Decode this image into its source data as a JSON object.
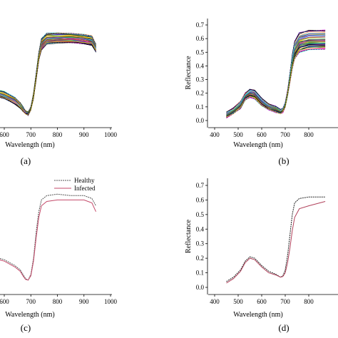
{
  "chart_data": [
    {
      "panel_label": "(a)",
      "type": "line",
      "xlabel": "Wavelength (nm)",
      "ylabel": "",
      "xlim": [
        560,
        1000
      ],
      "xticks": [
        "600",
        "700",
        "800",
        "900",
        "1000"
      ],
      "ylim": [
        0,
        0.72
      ],
      "yticks": [],
      "series_count": 60,
      "x": [
        560,
        600,
        640,
        660,
        670,
        680,
        690,
        700,
        710,
        720,
        730,
        740,
        760,
        800,
        850,
        900,
        930,
        945
      ],
      "series": [
        {
          "values": [
            0.23,
            0.21,
            0.17,
            0.13,
            0.1,
            0.07,
            0.06,
            0.1,
            0.2,
            0.35,
            0.5,
            0.6,
            0.64,
            0.64,
            0.64,
            0.63,
            0.62,
            0.56
          ]
        },
        {
          "values": [
            0.18,
            0.16,
            0.12,
            0.09,
            0.07,
            0.05,
            0.04,
            0.08,
            0.16,
            0.3,
            0.44,
            0.52,
            0.56,
            0.57,
            0.57,
            0.56,
            0.55,
            0.5
          ]
        }
      ]
    },
    {
      "panel_label": "(b)",
      "type": "line",
      "xlabel": "Wavelength (nm)",
      "ylabel": "Reflectance",
      "xlim": [
        400,
        870
      ],
      "xticks": [
        "400",
        "500",
        "600",
        "700",
        "800"
      ],
      "ylim": [
        -0.05,
        0.72
      ],
      "yticks": [
        "0.0",
        "0.1",
        "0.2",
        "0.3",
        "0.4",
        "0.5",
        "0.6",
        "0.7"
      ],
      "series_count": 60,
      "x": [
        450,
        480,
        510,
        530,
        550,
        570,
        600,
        630,
        660,
        680,
        690,
        700,
        710,
        720,
        730,
        740,
        760,
        800,
        870
      ],
      "series": [
        {
          "values": [
            0.06,
            0.09,
            0.14,
            0.2,
            0.23,
            0.22,
            0.16,
            0.12,
            0.1,
            0.08,
            0.09,
            0.13,
            0.22,
            0.35,
            0.48,
            0.58,
            0.64,
            0.66,
            0.66
          ]
        },
        {
          "values": [
            0.02,
            0.05,
            0.09,
            0.15,
            0.17,
            0.16,
            0.11,
            0.08,
            0.06,
            0.05,
            0.06,
            0.1,
            0.18,
            0.28,
            0.38,
            0.45,
            0.5,
            0.52,
            0.52
          ]
        }
      ]
    },
    {
      "panel_label": "(c)",
      "type": "line",
      "xlabel": "Wavelength (nm)",
      "ylabel": "",
      "xlim": [
        560,
        1000
      ],
      "xticks": [
        "600",
        "700",
        "800",
        "900",
        "1000"
      ],
      "ylim": [
        0,
        0.72
      ],
      "yticks": [],
      "legend": "top",
      "x": [
        560,
        600,
        640,
        660,
        670,
        680,
        690,
        700,
        710,
        720,
        730,
        740,
        760,
        800,
        850,
        900,
        930,
        945
      ],
      "series": [
        {
          "name": "Healthy",
          "values": [
            0.21,
            0.19,
            0.15,
            0.12,
            0.09,
            0.06,
            0.05,
            0.09,
            0.2,
            0.38,
            0.52,
            0.6,
            0.63,
            0.64,
            0.63,
            0.63,
            0.61,
            0.56
          ]
        },
        {
          "name": "Infected",
          "values": [
            0.2,
            0.18,
            0.14,
            0.11,
            0.08,
            0.055,
            0.05,
            0.08,
            0.18,
            0.34,
            0.48,
            0.56,
            0.59,
            0.6,
            0.6,
            0.6,
            0.58,
            0.52
          ]
        }
      ]
    },
    {
      "panel_label": "(d)",
      "type": "line",
      "xlabel": "Wavelength (nm)",
      "ylabel": "Reflectance",
      "xlim": [
        400,
        870
      ],
      "xticks": [
        "400",
        "500",
        "600",
        "700",
        "800"
      ],
      "ylim": [
        -0.05,
        0.72
      ],
      "yticks": [
        "0.0",
        "0.1",
        "0.2",
        "0.3",
        "0.4",
        "0.5",
        "0.6",
        "0.7"
      ],
      "x": [
        450,
        480,
        510,
        530,
        550,
        570,
        600,
        630,
        660,
        680,
        690,
        700,
        710,
        720,
        730,
        740,
        760,
        800,
        870
      ],
      "series": [
        {
          "values": [
            0.04,
            0.07,
            0.12,
            0.18,
            0.21,
            0.2,
            0.15,
            0.11,
            0.09,
            0.07,
            0.08,
            0.12,
            0.22,
            0.36,
            0.5,
            0.58,
            0.61,
            0.62,
            0.62
          ]
        },
        {
          "values": [
            0.03,
            0.06,
            0.11,
            0.17,
            0.2,
            0.19,
            0.14,
            0.1,
            0.085,
            0.07,
            0.075,
            0.1,
            0.17,
            0.27,
            0.39,
            0.48,
            0.54,
            0.56,
            0.59
          ]
        }
      ]
    }
  ],
  "colors": {
    "multi": [
      "#e6194b",
      "#3cb44b",
      "#4363d8",
      "#f58231",
      "#911eb4",
      "#46f0f0",
      "#f032e6",
      "#008080",
      "#000075",
      "#000000",
      "#ffe119",
      "#808000"
    ],
    "healthy": "#555555",
    "infected": "#c44a6a",
    "d_series": [
      "#222222",
      "#b0405a"
    ]
  }
}
